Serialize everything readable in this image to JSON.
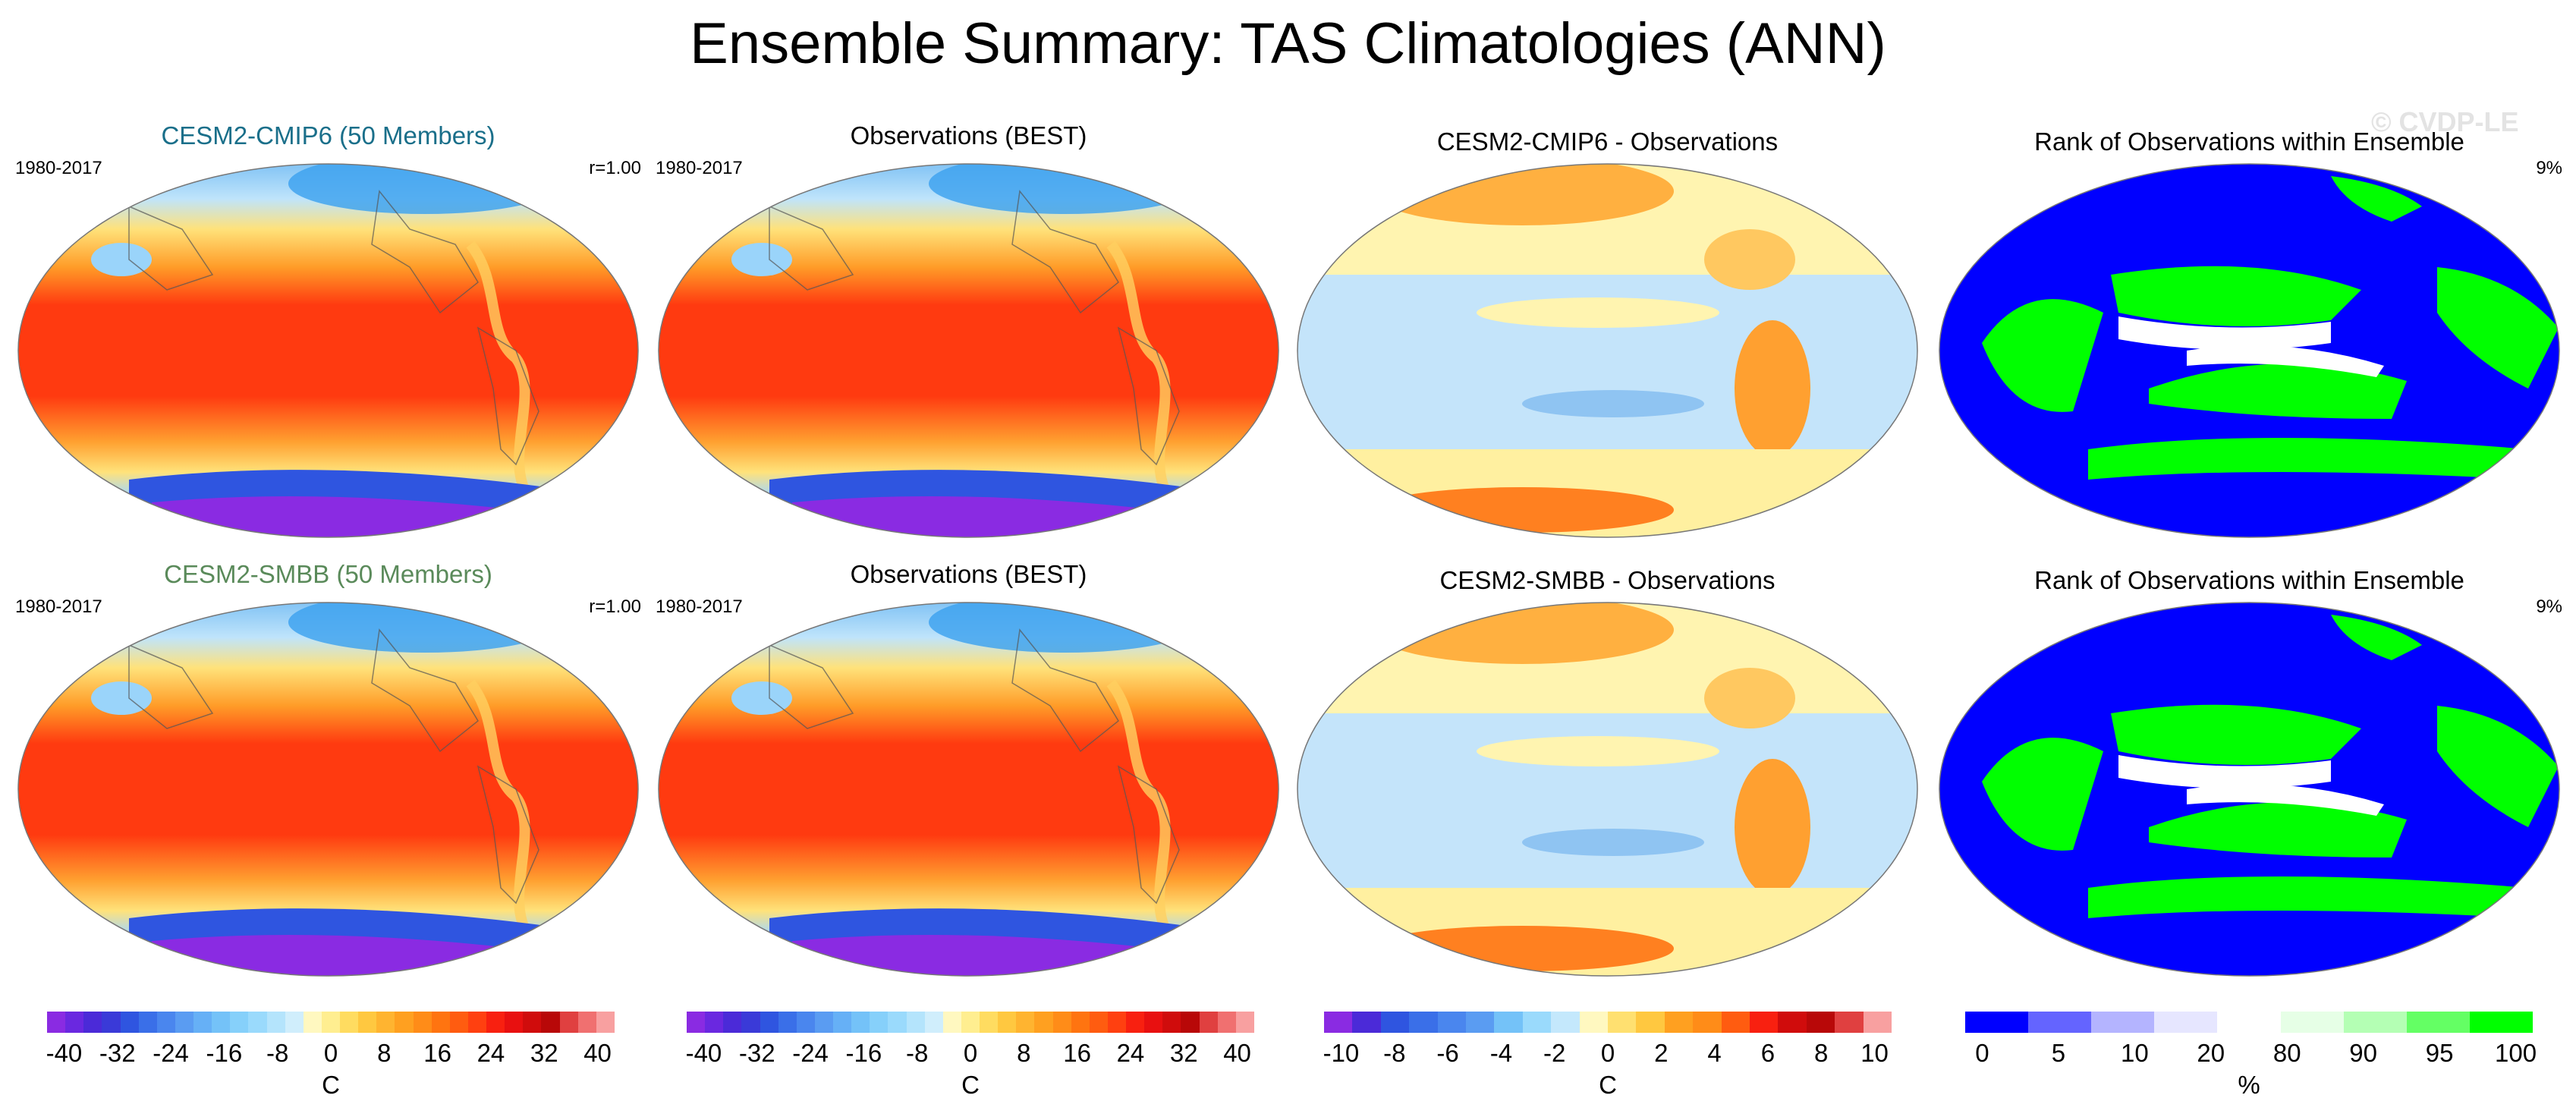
{
  "title": "Ensemble Summary: TAS Climatologies (ANN)",
  "watermark": "© CVDP-LE",
  "rows": [
    {
      "panels": [
        {
          "title": "CESM2-CMIP6 (50 Members)",
          "title_color": "#1a6f8a",
          "left_label": "1980-2017",
          "right_label": "r=1.00",
          "kind": "tas"
        },
        {
          "title": "Observations (BEST)",
          "title_color": "#000000",
          "left_label": "1980-2017",
          "right_label": "",
          "kind": "tas"
        },
        {
          "title": "CESM2-CMIP6 - Observations",
          "title_color": "#000000",
          "left_label": "",
          "right_label": "",
          "kind": "diff"
        },
        {
          "title": "Rank of Observations within Ensemble",
          "title_color": "#000000",
          "left_label": "",
          "right_label": "9%",
          "kind": "rank"
        }
      ]
    },
    {
      "panels": [
        {
          "title": "CESM2-SMBB (50 Members)",
          "title_color": "#5a8a5a",
          "left_label": "1980-2017",
          "right_label": "r=1.00",
          "kind": "tas"
        },
        {
          "title": "Observations (BEST)",
          "title_color": "#000000",
          "left_label": "1980-2017",
          "right_label": "",
          "kind": "tas"
        },
        {
          "title": "CESM2-SMBB - Observations",
          "title_color": "#000000",
          "left_label": "",
          "right_label": "",
          "kind": "diff"
        },
        {
          "title": "Rank of Observations within Ensemble",
          "title_color": "#000000",
          "left_label": "",
          "right_label": "9%",
          "kind": "rank"
        }
      ]
    }
  ],
  "chart_data": [
    {
      "type": "heatmap",
      "description_of_field": "annual mean surface air temperature climatology",
      "colorbar": {
        "ticks": [
          "-40",
          "-32",
          "-24",
          "-16",
          "-8",
          "0",
          "8",
          "16",
          "24",
          "32",
          "40"
        ],
        "unit": "C",
        "colors": [
          "#8a2be2",
          "#6a28e0",
          "#4b2ad8",
          "#3a3ad8",
          "#2f55e0",
          "#3a6fe8",
          "#4a86ee",
          "#5a9cf2",
          "#66b0f6",
          "#74c2f8",
          "#86d0fa",
          "#9adafc",
          "#b4e4fc",
          "#d0eefc",
          "#fff8c0",
          "#ffee90",
          "#ffdc60",
          "#ffc840",
          "#ffb430",
          "#ffa020",
          "#ff8c18",
          "#ff7410",
          "#ff5c10",
          "#ff4010",
          "#f82010",
          "#e81010",
          "#d00c0c",
          "#b80808",
          "#e04040",
          "#f07070",
          "#f8a0a0"
        ]
      }
    },
    {
      "type": "heatmap",
      "description_of_field": "model minus observations difference",
      "colorbar": {
        "ticks": [
          "-10",
          "-8",
          "-6",
          "-4",
          "-2",
          "0",
          "2",
          "4",
          "6",
          "8",
          "10"
        ],
        "unit": "C",
        "colors": [
          "#8a2be2",
          "#4b2ad8",
          "#2f55e0",
          "#3a6fe8",
          "#4a86ee",
          "#5a9cf2",
          "#74c2f8",
          "#9adafc",
          "#c4e8fc",
          "#fff8c0",
          "#ffe070",
          "#ffc840",
          "#ffa020",
          "#ff8c18",
          "#ff5c10",
          "#f82010",
          "#d00c0c",
          "#b80808",
          "#e04040",
          "#f8a0a0"
        ]
      }
    },
    {
      "type": "heatmap",
      "description_of_field": "rank of observations within ensemble",
      "colorbar": {
        "ticks": [
          "0",
          "5",
          "10",
          "20",
          "80",
          "90",
          "95",
          "100"
        ],
        "unit": "%",
        "colors": [
          "#0000ff",
          "#6464ff",
          "#b4b4ff",
          "#e6e6ff",
          "#ffffff",
          "#e6ffe6",
          "#b4ffb4",
          "#64ff64",
          "#00ff00"
        ]
      }
    }
  ]
}
